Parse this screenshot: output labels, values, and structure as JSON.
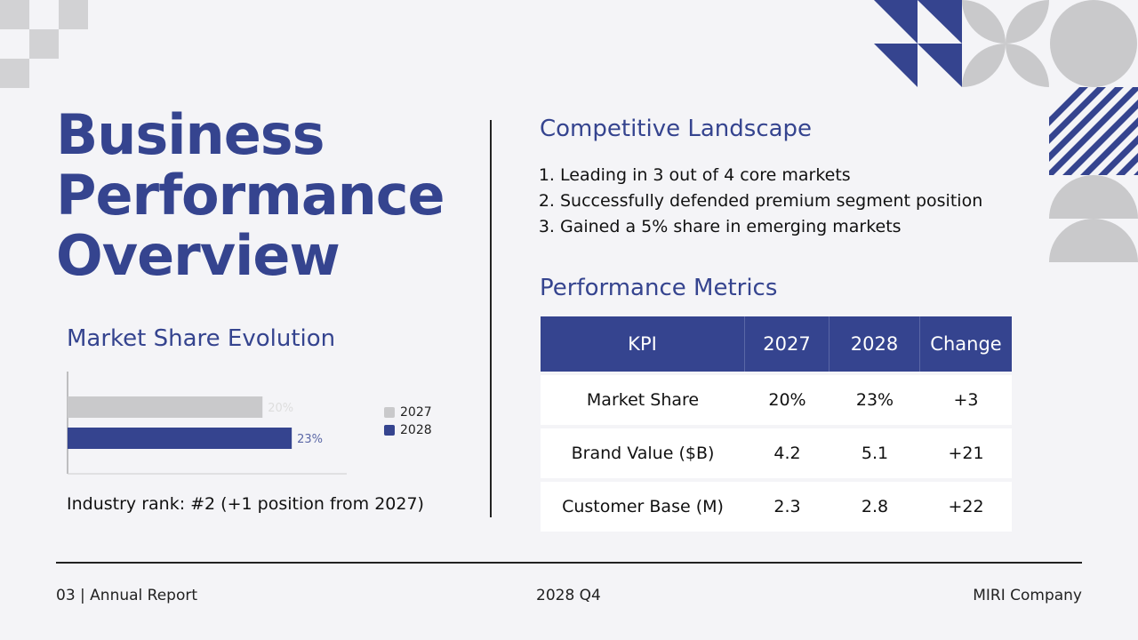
{
  "title_lines": [
    "Business",
    "Performance",
    "Overview"
  ],
  "market_share": {
    "heading": "Market Share Evolution",
    "rank_text": "Industry rank: #2 (+1 position from 2027)"
  },
  "chart_data": {
    "type": "bar",
    "orientation": "horizontal",
    "categories": [
      "Market Share"
    ],
    "series": [
      {
        "name": "2027",
        "values": [
          20
        ],
        "label": "20%",
        "color": "#c9c9cb"
      },
      {
        "name": "2028",
        "values": [
          23
        ],
        "label": "23%",
        "color": "#35448f"
      }
    ],
    "xlim": [
      0,
      27
    ],
    "legend": "right",
    "grid": false
  },
  "competitive": {
    "heading": "Competitive Landscape",
    "items": [
      "Leading in 3 out of 4 core markets",
      "Successfully defended premium segment position",
      "Gained a 5% share in emerging markets"
    ]
  },
  "metrics": {
    "heading": "Performance Metrics",
    "columns": [
      "KPI",
      "2027",
      "2028",
      "Change"
    ],
    "rows": [
      [
        "Market Share",
        "20%",
        "23%",
        "+3"
      ],
      [
        "Brand Value ($B)",
        "4.2",
        "5.1",
        "+21"
      ],
      [
        "Customer Base (M)",
        "2.3",
        "2.8",
        "+22"
      ]
    ]
  },
  "footer": {
    "left": "03 | Annual Report",
    "center": "2028 Q4",
    "right": "MIRI Company"
  },
  "colors": {
    "accent": "#35448f",
    "gray": "#c9c9cb"
  }
}
